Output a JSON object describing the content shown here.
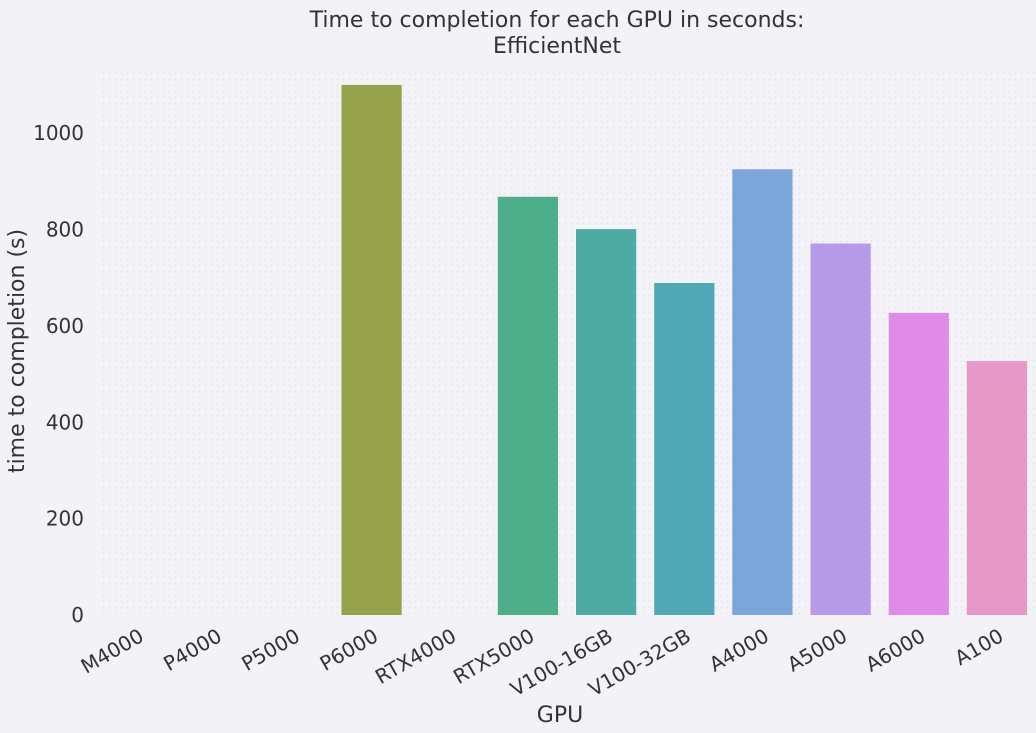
{
  "chart_data": {
    "type": "bar",
    "title_line1": "Time to completion for each GPU in seconds:",
    "title_line2": "EfficientNet",
    "xlabel": "GPU",
    "ylabel": "time to completion (s)",
    "categories": [
      "M4000",
      "P4000",
      "P5000",
      "P6000",
      "RTX4000",
      "RTX5000",
      "V100-16GB",
      "V100-32GB",
      "A4000",
      "A5000",
      "A6000",
      "A100"
    ],
    "values": [
      0,
      0,
      0,
      1100,
      0,
      868,
      801,
      689,
      925,
      771,
      627,
      527
    ],
    "colors": [
      "#f77189",
      "#dc8932",
      "#ae9d31",
      "#97a24d",
      "#50b131",
      "#4cae8a",
      "#4eaba3",
      "#50a8b6",
      "#7aa6d9",
      "#b69be8",
      "#e28ae8",
      "#e798c6"
    ],
    "ylim": [
      0,
      1100
    ],
    "yticks": [
      0,
      200,
      400,
      600,
      800,
      1000
    ],
    "grid": false
  }
}
